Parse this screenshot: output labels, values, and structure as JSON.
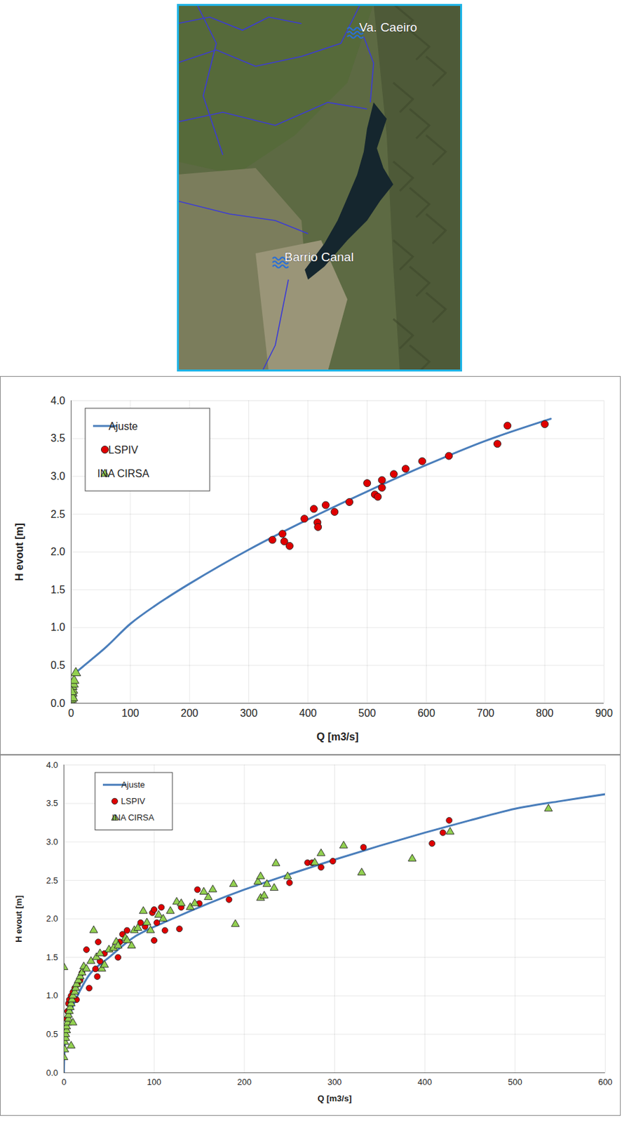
{
  "map": {
    "labels": [
      "Va. Caeiro",
      "Barrio Canal"
    ]
  },
  "chart_data": [
    {
      "type": "scatter",
      "x_label": "Q [m3/s]",
      "y_label": "H evout [m]",
      "xlim": [
        0,
        900
      ],
      "xticks": [
        0,
        100,
        200,
        300,
        400,
        500,
        600,
        700,
        800,
        900
      ],
      "ylim": [
        0,
        4
      ],
      "yticks": [
        {
          "value": 0,
          "label": "0.0"
        },
        0.5,
        {
          "value": 1,
          "label": "1.0"
        },
        1.5,
        {
          "value": 2,
          "label": "2.0"
        },
        2.5,
        {
          "value": 3,
          "label": "3.0"
        },
        3.5,
        {
          "value": 4,
          "label": "4.0"
        }
      ],
      "grid": true,
      "legend": "top-left",
      "series": [
        {
          "name": "Ajuste",
          "type": "line",
          "color": "#4a7ebb",
          "line_style": "solid",
          "x": [
            10,
            30,
            60,
            100,
            140,
            200,
            300,
            400,
            500,
            600,
            700,
            810
          ],
          "values": [
            0.42,
            0.55,
            0.75,
            1.05,
            1.28,
            1.58,
            2.03,
            2.43,
            2.8,
            3.15,
            3.47,
            3.76
          ]
        },
        {
          "name": "LSPIV",
          "type": "scatter",
          "color": "#e00000",
          "marker": "circle",
          "x": [
            340,
            357,
            360,
            369,
            394,
            410,
            416,
            417,
            430,
            445,
            470,
            500,
            513,
            518,
            525,
            525,
            545,
            565,
            593,
            638,
            720,
            737,
            800
          ],
          "values": [
            2.16,
            2.24,
            2.14,
            2.08,
            2.44,
            2.57,
            2.39,
            2.33,
            2.62,
            2.53,
            2.66,
            2.91,
            2.76,
            2.73,
            2.95,
            2.85,
            3.03,
            3.1,
            3.2,
            3.27,
            3.43,
            3.67,
            3.69
          ]
        },
        {
          "name": "INA CIRSA",
          "type": "scatter",
          "color": "#92d050",
          "marker": "triangle",
          "x": [
            0,
            1,
            1,
            2,
            3,
            2,
            4,
            5,
            8,
            3,
            1
          ],
          "values": [
            0.02,
            0.05,
            0.1,
            0.13,
            0.17,
            0.22,
            0.25,
            0.3,
            0.4,
            0.07,
            0.15
          ]
        }
      ]
    },
    {
      "type": "scatter",
      "x_label": "Q [m3/s]",
      "y_label": "H evout [m]",
      "xlim": [
        0,
        600
      ],
      "xticks": [
        0,
        100,
        200,
        300,
        400,
        500,
        600
      ],
      "ylim": [
        0,
        4
      ],
      "yticks": [
        {
          "value": 0,
          "label": "0.0"
        },
        0.5,
        {
          "value": 1,
          "label": "1.0"
        },
        1.5,
        {
          "value": 2,
          "label": "2.0"
        },
        2.5,
        {
          "value": 3,
          "label": "3.0"
        },
        3.5,
        {
          "value": 4,
          "label": "4.0"
        }
      ],
      "grid": true,
      "legend": "top-left",
      "series": [
        {
          "name": "Ajuste",
          "type": "line",
          "color": "#4a7ebb",
          "line_style": "solid",
          "x": [
            0,
            1,
            3,
            8,
            15,
            30,
            50,
            80,
            120,
            160,
            200,
            250,
            300,
            350,
            400,
            450,
            500,
            550,
            600
          ],
          "values": [
            0,
            0.35,
            0.55,
            0.8,
            1.0,
            1.3,
            1.5,
            1.78,
            2.0,
            2.2,
            2.38,
            2.58,
            2.77,
            2.95,
            3.12,
            3.28,
            3.43,
            3.53,
            3.62
          ]
        },
        {
          "name": "LSPIV",
          "type": "scatter",
          "color": "#e00000",
          "marker": "circle",
          "x": [
            2,
            3,
            4,
            5,
            6,
            8,
            10,
            12,
            14,
            15,
            18,
            20,
            25,
            28,
            35,
            37,
            38,
            40,
            45,
            60,
            62,
            65,
            70,
            85,
            90,
            98,
            100,
            100,
            103,
            108,
            112,
            128,
            130,
            148,
            150,
            183,
            250,
            270,
            275,
            285,
            298,
            332,
            408,
            420,
            427
          ],
          "values": [
            0.55,
            0.7,
            0.8,
            0.9,
            0.95,
            1.0,
            1.05,
            1.1,
            0.95,
            1.15,
            1.2,
            1.3,
            1.6,
            1.1,
            1.35,
            1.25,
            1.7,
            1.45,
            1.55,
            1.5,
            1.7,
            1.8,
            1.85,
            1.95,
            1.9,
            2.08,
            1.72,
            2.12,
            1.95,
            2.15,
            1.85,
            1.87,
            2.15,
            2.38,
            2.2,
            2.25,
            2.47,
            2.73,
            2.73,
            2.67,
            2.75,
            2.93,
            2.98,
            3.12,
            3.28
          ]
        },
        {
          "name": "INA CIRSA",
          "type": "scatter",
          "color": "#92d050",
          "marker": "triangle",
          "x": [
            0,
            0,
            1,
            1,
            2,
            2,
            3,
            3,
            4,
            5,
            5,
            6,
            7,
            8,
            8,
            9,
            10,
            10,
            12,
            13,
            14,
            16,
            18,
            20,
            22,
            25,
            30,
            33,
            36,
            40,
            42,
            45,
            50,
            55,
            58,
            60,
            68,
            70,
            75,
            78,
            82,
            88,
            92,
            96,
            105,
            110,
            118,
            125,
            130,
            140,
            145,
            155,
            160,
            165,
            188,
            190,
            215,
            218,
            218,
            222,
            225,
            233,
            235,
            248,
            278,
            285,
            310,
            330,
            386,
            428,
            537
          ],
          "values": [
            0.2,
            1.37,
            0.3,
            0.4,
            0.45,
            0.5,
            0.55,
            0.6,
            0.65,
            0.7,
            0.75,
            0.8,
            0.85,
            0.9,
            0.35,
            0.95,
            1.0,
            0.65,
            1.05,
            1.1,
            1.15,
            1.2,
            1.25,
            1.3,
            1.38,
            1.35,
            1.45,
            1.85,
            1.5,
            1.55,
            1.35,
            1.4,
            1.6,
            1.62,
            1.7,
            1.65,
            1.75,
            1.72,
            1.65,
            1.85,
            1.88,
            2.1,
            1.95,
            1.85,
            2.05,
            2.0,
            2.1,
            2.22,
            2.2,
            2.15,
            2.2,
            2.35,
            2.28,
            2.38,
            2.45,
            1.93,
            2.48,
            2.55,
            2.27,
            2.3,
            2.45,
            2.4,
            2.72,
            2.55,
            2.73,
            2.85,
            2.95,
            2.6,
            2.78,
            3.13,
            3.43
          ]
        }
      ]
    }
  ]
}
